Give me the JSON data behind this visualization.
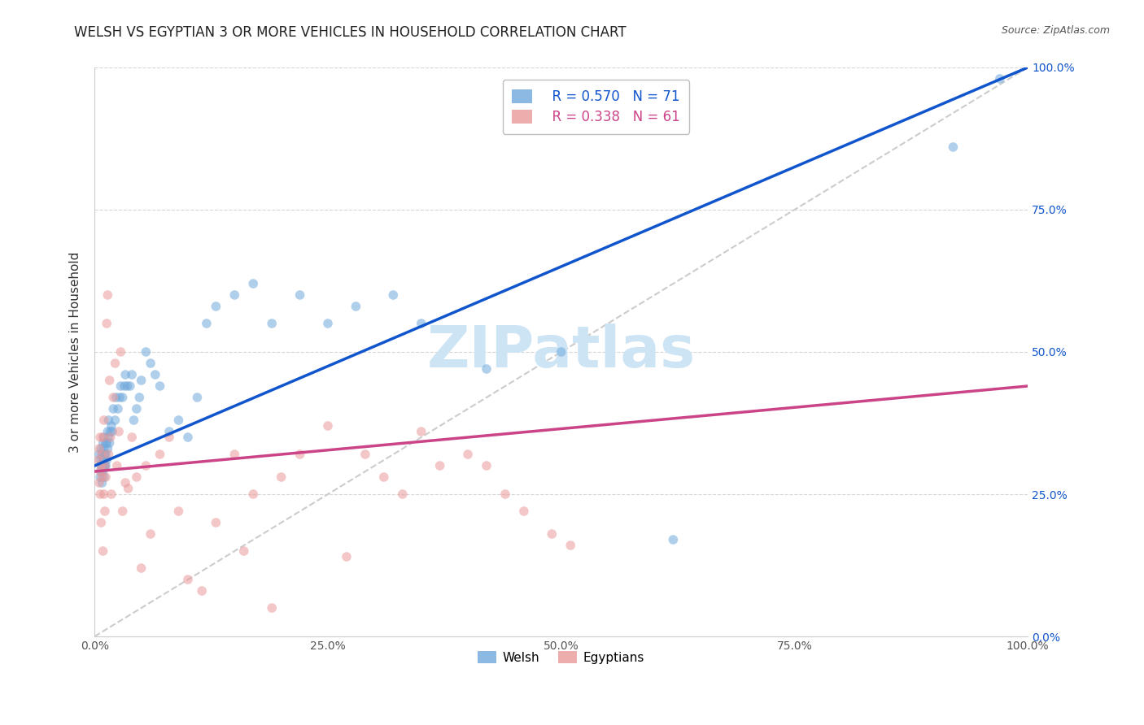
{
  "title": "WELSH VS EGYPTIAN 3 OR MORE VEHICLES IN HOUSEHOLD CORRELATION CHART",
  "source": "Source: ZipAtlas.com",
  "ylabel": "3 or more Vehicles in Household",
  "welsh_color": "#6fa8dc",
  "egyptian_color": "#ea9999",
  "welsh_line_color": "#1155cc",
  "egyptian_line_color": "#cc4488",
  "diagonal_color": "#cccccc",
  "welsh_R": 0.57,
  "welsh_N": 71,
  "egyptian_R": 0.338,
  "egyptian_N": 61,
  "legend_welsh": "Welsh",
  "legend_egyptian": "Egyptians",
  "welsh_line_x0": 0.0,
  "welsh_line_y0": 0.3,
  "welsh_line_x1": 1.0,
  "welsh_line_y1": 1.0,
  "egyptian_line_x0": 0.0,
  "egyptian_line_y0": 0.29,
  "egyptian_line_x1": 1.0,
  "egyptian_line_y1": 0.44,
  "xlim": [
    0.0,
    1.0
  ],
  "ylim": [
    0.0,
    1.0
  ],
  "marker_size": 70,
  "alpha": 0.55,
  "line_width": 2.5,
  "watermark_text": "ZIPatlas",
  "watermark_color": "#cde4f5",
  "watermark_fontsize": 52,
  "background_color": "#ffffff",
  "grid_color": "#cccccc",
  "title_fontsize": 12,
  "axis_label_fontsize": 11,
  "tick_label_color_right": "#1155cc",
  "source_color": "#555555",
  "welsh_scatter_x": [
    0.005,
    0.006,
    0.006,
    0.007,
    0.007,
    0.007,
    0.008,
    0.008,
    0.008,
    0.009,
    0.009,
    0.009,
    0.01,
    0.01,
    0.01,
    0.01,
    0.01,
    0.011,
    0.011,
    0.012,
    0.012,
    0.012,
    0.013,
    0.013,
    0.014,
    0.014,
    0.015,
    0.015,
    0.016,
    0.017,
    0.018,
    0.019,
    0.02,
    0.022,
    0.023,
    0.025,
    0.027,
    0.028,
    0.03,
    0.032,
    0.033,
    0.035,
    0.038,
    0.04,
    0.042,
    0.045,
    0.048,
    0.05,
    0.055,
    0.06,
    0.065,
    0.07,
    0.08,
    0.09,
    0.1,
    0.11,
    0.12,
    0.13,
    0.15,
    0.17,
    0.19,
    0.22,
    0.25,
    0.28,
    0.32,
    0.35,
    0.42,
    0.5,
    0.62,
    0.92,
    0.97
  ],
  "welsh_scatter_y": [
    0.32,
    0.28,
    0.31,
    0.29,
    0.3,
    0.33,
    0.27,
    0.3,
    0.32,
    0.29,
    0.31,
    0.34,
    0.28,
    0.3,
    0.31,
    0.33,
    0.35,
    0.3,
    0.32,
    0.3,
    0.32,
    0.34,
    0.31,
    0.34,
    0.33,
    0.36,
    0.35,
    0.38,
    0.34,
    0.36,
    0.37,
    0.36,
    0.4,
    0.38,
    0.42,
    0.4,
    0.42,
    0.44,
    0.42,
    0.44,
    0.46,
    0.44,
    0.44,
    0.46,
    0.38,
    0.4,
    0.42,
    0.45,
    0.5,
    0.48,
    0.46,
    0.44,
    0.36,
    0.38,
    0.35,
    0.42,
    0.55,
    0.58,
    0.6,
    0.62,
    0.55,
    0.6,
    0.55,
    0.58,
    0.6,
    0.55,
    0.47,
    0.5,
    0.17,
    0.86,
    0.98
  ],
  "egyptian_scatter_x": [
    0.004,
    0.005,
    0.005,
    0.006,
    0.006,
    0.006,
    0.007,
    0.007,
    0.008,
    0.008,
    0.009,
    0.009,
    0.01,
    0.01,
    0.011,
    0.011,
    0.012,
    0.013,
    0.014,
    0.015,
    0.016,
    0.017,
    0.018,
    0.02,
    0.022,
    0.024,
    0.026,
    0.028,
    0.03,
    0.033,
    0.036,
    0.04,
    0.045,
    0.05,
    0.055,
    0.06,
    0.07,
    0.08,
    0.09,
    0.1,
    0.115,
    0.13,
    0.15,
    0.16,
    0.17,
    0.19,
    0.2,
    0.22,
    0.25,
    0.27,
    0.29,
    0.31,
    0.33,
    0.35,
    0.37,
    0.4,
    0.42,
    0.44,
    0.46,
    0.49,
    0.51
  ],
  "egyptian_scatter_y": [
    0.31,
    0.27,
    0.33,
    0.25,
    0.29,
    0.35,
    0.2,
    0.3,
    0.28,
    0.32,
    0.15,
    0.35,
    0.25,
    0.38,
    0.3,
    0.22,
    0.28,
    0.55,
    0.6,
    0.32,
    0.45,
    0.35,
    0.25,
    0.42,
    0.48,
    0.3,
    0.36,
    0.5,
    0.22,
    0.27,
    0.26,
    0.35,
    0.28,
    0.12,
    0.3,
    0.18,
    0.32,
    0.35,
    0.22,
    0.1,
    0.08,
    0.2,
    0.32,
    0.15,
    0.25,
    0.05,
    0.28,
    0.32,
    0.37,
    0.14,
    0.32,
    0.28,
    0.25,
    0.36,
    0.3,
    0.32,
    0.3,
    0.25,
    0.22,
    0.18,
    0.16
  ]
}
